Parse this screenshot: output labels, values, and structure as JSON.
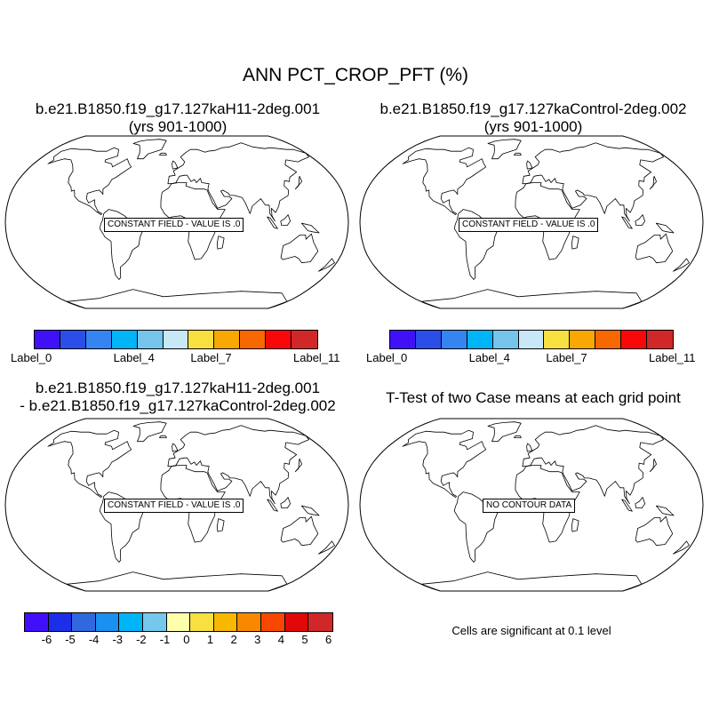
{
  "title": "ANN PCT_CROP_PFT (%)",
  "panels": [
    {
      "title_line1": "b.e21.B1850.f19_g17.127kaH11-2deg.001",
      "title_line2": "(yrs 901-1000)",
      "label": "CONSTANT FIELD - VALUE IS .0"
    },
    {
      "title_line1": "b.e21.B1850.f19_g17.127kaControl-2deg.002",
      "title_line2": "(yrs 901-1000)",
      "label": "CONSTANT FIELD - VALUE IS .0"
    },
    {
      "title_line1": "b.e21.B1850.f19_g17.127kaH11-2deg.001",
      "title_line2": "- b.e21.B1850.f19_g17.127kaControl-2deg.002",
      "label": "CONSTANT FIELD - VALUE IS .0"
    },
    {
      "title_line1": "T-Test of two Case means at each grid point",
      "title_line2": "",
      "label": "NO CONTOUR DATA"
    }
  ],
  "colorbar_top": {
    "colors": [
      "#4010f8",
      "#2c4ee8",
      "#3584f2",
      "#00b4f8",
      "#74c4ec",
      "#c8e8f8",
      "#f8e040",
      "#f8a800",
      "#f86800",
      "#f80808",
      "#d02828"
    ],
    "labels": [
      "Label_0",
      "Label_4",
      "Label_7",
      "Label_11"
    ],
    "label_positions": [
      0,
      4,
      7,
      11
    ]
  },
  "colorbar_bottom": {
    "colors": [
      "#4010f8",
      "#1c2ee8",
      "#3068e0",
      "#1a90f0",
      "#00b4f8",
      "#74c8ec",
      "#ffffaa",
      "#f8e040",
      "#f8b800",
      "#f88800",
      "#f84800",
      "#e00808",
      "#d02828"
    ],
    "labels": [
      "-6",
      "-5",
      "-4",
      "-3",
      "-2",
      "-1",
      "0",
      "1",
      "2",
      "3",
      "4",
      "5",
      "6"
    ]
  },
  "significance_note": "Cells are significant at 0.1 level"
}
